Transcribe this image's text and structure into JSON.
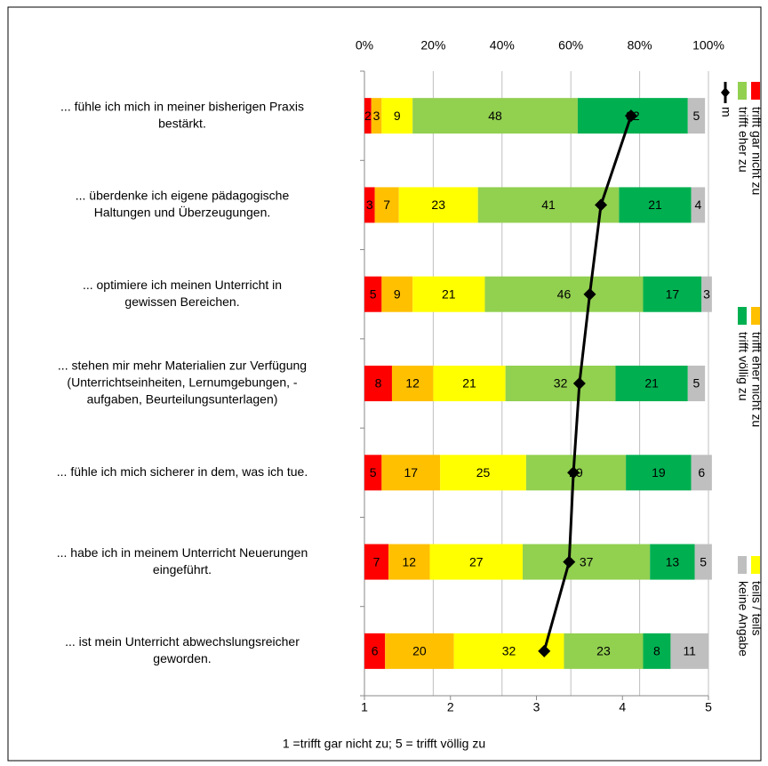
{
  "chart_data": {
    "type": "bar",
    "orientation": "horizontal",
    "stacked": true,
    "categories": [
      [
        "... fühle ich mich in meiner bisherigen Praxis",
        "bestärkt."
      ],
      [
        "... überdenke ich eigene pädagogische",
        "Haltungen und Überzeugungen."
      ],
      [
        "... optimiere ich meinen Unterricht in",
        "gewissen Bereichen."
      ],
      [
        "... stehen mir mehr Materialien zur Verfügung",
        "(Unterrichtseinheiten, Lernumgebungen, -",
        "aufgaben, Beurteilungsunterlagen)"
      ],
      [
        "... fühle ich mich sicherer in dem, was ich tue."
      ],
      [
        "... habe ich in meinem Unterricht Neuerungen",
        "eingeführt."
      ],
      [
        "... ist mein Unterricht abwechslungsreicher",
        "geworden."
      ]
    ],
    "series": [
      {
        "name": "trifft gar nicht zu",
        "color": "#ff0000",
        "values": [
          2,
          3,
          5,
          8,
          5,
          7,
          6
        ]
      },
      {
        "name": "trifft eher nicht zu",
        "color": "#ffc000",
        "values": [
          3,
          7,
          9,
          12,
          17,
          12,
          20
        ]
      },
      {
        "name": "teils / teils",
        "color": "#ffff00",
        "values": [
          9,
          23,
          21,
          21,
          25,
          27,
          32
        ]
      },
      {
        "name": "trifft eher zu",
        "color": "#92d050",
        "values": [
          48,
          41,
          46,
          32,
          29,
          37,
          23
        ]
      },
      {
        "name": "trifft völlig zu",
        "color": "#00b050",
        "values": [
          32,
          21,
          17,
          21,
          19,
          13,
          8
        ]
      },
      {
        "name": "keine Angabe",
        "color": "#bfbfbf",
        "values": [
          5,
          4,
          3,
          5,
          6,
          5,
          11
        ]
      },
      {
        "name": "m",
        "color": "#000000",
        "type": "line",
        "axis": "x2",
        "values": [
          4.1,
          3.75,
          3.62,
          3.5,
          3.43,
          3.38,
          3.09
        ]
      }
    ],
    "xlim": [
      0,
      100
    ],
    "xticks": [
      {
        "value": 0,
        "label": "0%"
      },
      {
        "value": 20,
        "label": "20%"
      },
      {
        "value": 40,
        "label": "40%"
      },
      {
        "value": 60,
        "label": "60%"
      },
      {
        "value": 80,
        "label": "80%"
      },
      {
        "value": 100,
        "label": "100%"
      }
    ],
    "x2lim": [
      1,
      5
    ],
    "x2ticks": [
      1,
      2,
      3,
      4,
      5
    ],
    "grid": true,
    "note": "1 =trifft gar nicht zu; 5 = trifft völlig zu"
  }
}
